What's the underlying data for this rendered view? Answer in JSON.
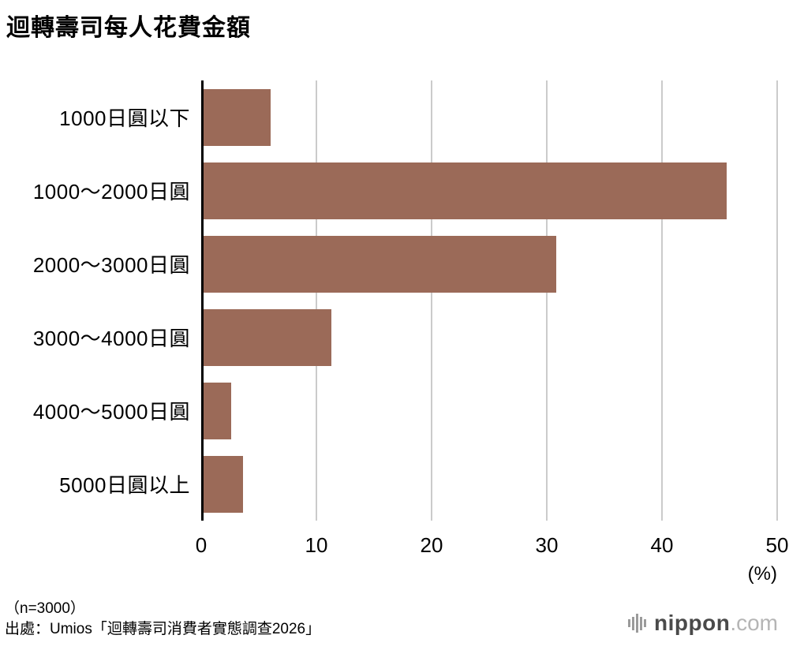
{
  "title": "迴轉壽司每人花費金額",
  "chart_data": {
    "type": "bar",
    "orientation": "horizontal",
    "title": "迴轉壽司每人花費金額",
    "categories": [
      "1000日圓以下",
      "1000〜2000日圓",
      "2000〜3000日圓",
      "3000〜4000日圓",
      "4000〜5000日圓",
      "5000日圓以上"
    ],
    "values": [
      6.0,
      45.6,
      30.8,
      11.3,
      2.6,
      3.6
    ],
    "xlim": [
      0,
      50
    ],
    "x_ticks": [
      0,
      10,
      20,
      30,
      40,
      50
    ],
    "x_unit": "(%)",
    "bar_color": "#9b6a58",
    "grid": true,
    "gridline_color": "#cbcbcb"
  },
  "footer": {
    "sample": "（n=3000）",
    "source": "出處：Umios「迴轉壽司消費者實態調查2026」"
  },
  "logo": {
    "name": "nippon",
    "domain": ".com"
  }
}
